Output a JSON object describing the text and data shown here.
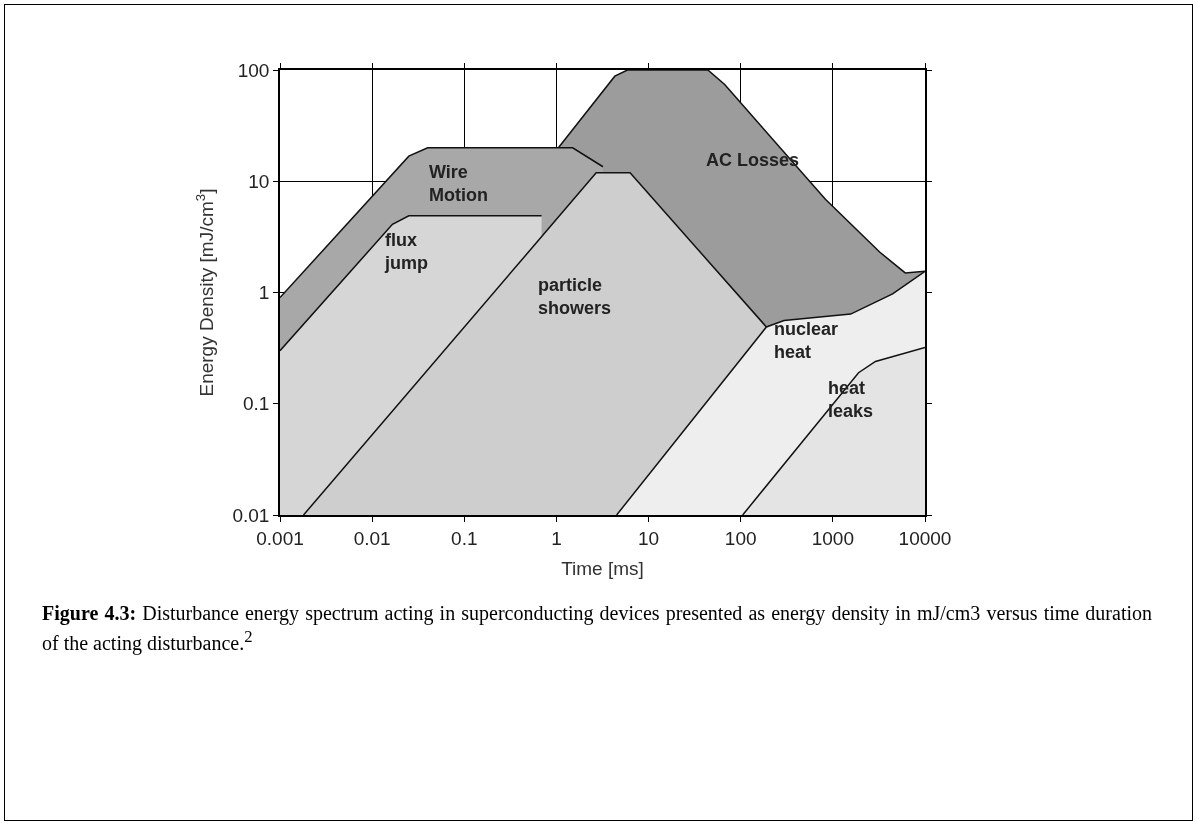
{
  "chart_data": {
    "type": "area",
    "xlabel": "Time [ms]",
    "ylabel": "Energy Density [mJ/cm$^{3}$]",
    "log": "xy",
    "grid": true,
    "legend": false,
    "line_style": "solid",
    "xlim": [
      0.001,
      10000
    ],
    "ylim": [
      0.01,
      100
    ],
    "xticks": [
      {
        "value": 0.001,
        "label": "0.001"
      },
      {
        "value": 0.01,
        "label": "0.01"
      },
      {
        "value": 0.1,
        "label": "0.1"
      },
      1,
      10,
      100,
      1000,
      10000
    ],
    "yticks": [
      {
        "value": 0.01,
        "label": "0.01"
      },
      {
        "value": 0.1,
        "label": "0.1"
      },
      1,
      10,
      100
    ],
    "series": [
      {
        "name": "AC Losses",
        "color": "#9c9c9c",
        "x": [
          1.05,
          4.3,
          5.9,
          44,
          67,
          830,
          3240,
          6100,
          10000
        ],
        "values": [
          20,
          88,
          100,
          100,
          74,
          6.9,
          2.3,
          1.5,
          1.55
        ]
      },
      {
        "name": "Wire\nMotion",
        "color": "#a8a8a8",
        "x": [
          0.001,
          0.025,
          0.04,
          1.5,
          3.2
        ],
        "values": [
          0.9,
          16.8,
          20,
          20,
          13.5
        ]
      },
      {
        "name": "flux\njump",
        "color": "#d6d6d6",
        "x": [
          0.001,
          0.0166,
          0.025,
          0.69
        ],
        "values": [
          0.3,
          4.1,
          4.9,
          4.9
        ]
      },
      {
        "name": "particle\nshowers",
        "color": "#cecece",
        "x": [
          0.0018,
          2.7,
          6.3,
          190
        ],
        "values": [
          0.01,
          11.9,
          11.9,
          0.49
        ]
      },
      {
        "name": "nuclear\nheat",
        "color": "#eeeeee",
        "x": [
          4.5,
          190,
          295,
          1560,
          4450,
          10000
        ],
        "values": [
          0.01,
          0.49,
          0.56,
          0.64,
          0.97,
          1.55
        ]
      },
      {
        "name": "heat\nleaks",
        "color": "#e4e4e4",
        "x": [
          105,
          1900,
          2900,
          10000
        ],
        "values": [
          0.01,
          0.19,
          0.24,
          0.32
        ]
      }
    ],
    "annotations": [
      "Figure 4.3: Disturbance energy spectrum acting in superconducting devices presented as energy density in mJ/cm3 versus time duration of the acting disturbance.$^{2}$"
    ]
  }
}
